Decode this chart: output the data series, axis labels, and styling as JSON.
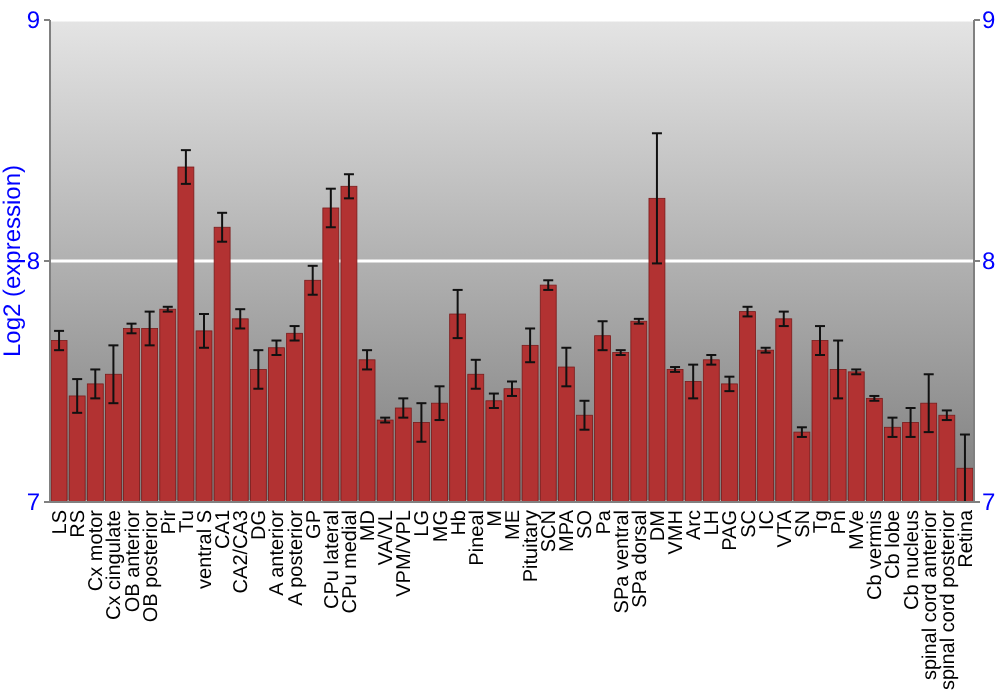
{
  "chart_data": {
    "type": "bar",
    "ylabel": "Log2 (expression)",
    "categories": [
      "LS",
      "RS",
      "Cx motor",
      "Cx cingulate",
      "OB anterior",
      "OB posterior",
      "Pir",
      "Tu",
      "ventral S",
      "CA1",
      "CA2/CA3",
      "DG",
      "A anterior",
      "A posterior",
      "GP",
      "CPu lateral",
      "CPu medial",
      "MD",
      "VA/VL",
      "VPM/VPL",
      "LG",
      "MG",
      "Hb",
      "Pineal",
      "M",
      "ME",
      "Pituitary",
      "SCN",
      "MPA",
      "SO",
      "Pa",
      "SPa ventral",
      "SPa dorsal",
      "DM",
      "VMH",
      "Arc",
      "LH",
      "PAG",
      "SC",
      "IC",
      "VTA",
      "SN",
      "Tg",
      "Pn",
      "MVe",
      "Cb vermis",
      "Cb lobe",
      "Cb nucleus",
      "spinal cord anterior",
      "spinal cord posterior",
      "Retina"
    ],
    "values": [
      7.67,
      7.44,
      7.49,
      7.53,
      7.72,
      7.72,
      7.8,
      8.39,
      7.71,
      8.14,
      7.76,
      7.55,
      7.64,
      7.7,
      7.92,
      8.22,
      8.31,
      7.59,
      7.34,
      7.39,
      7.33,
      7.41,
      7.78,
      7.53,
      7.42,
      7.47,
      7.65,
      7.9,
      7.56,
      7.36,
      7.69,
      7.62,
      7.75,
      8.26,
      7.55,
      7.5,
      7.59,
      7.49,
      7.79,
      7.63,
      7.76,
      7.29,
      7.67,
      7.55,
      7.54,
      7.43,
      7.31,
      7.33,
      7.41,
      7.36,
      7.14
    ],
    "errors": [
      0.04,
      0.07,
      0.06,
      0.12,
      0.02,
      0.07,
      0.01,
      0.07,
      0.07,
      0.06,
      0.04,
      0.08,
      0.03,
      0.03,
      0.06,
      0.08,
      0.05,
      0.04,
      0.01,
      0.04,
      0.08,
      0.07,
      0.1,
      0.06,
      0.03,
      0.03,
      0.07,
      0.02,
      0.08,
      0.06,
      0.06,
      0.01,
      0.01,
      0.27,
      0.01,
      0.07,
      0.02,
      0.03,
      0.02,
      0.01,
      0.03,
      0.02,
      0.06,
      0.12,
      0.01,
      0.01,
      0.04,
      0.06,
      0.12,
      0.02,
      0.14
    ],
    "color": "#b23232",
    "ylim": [
      7,
      9
    ],
    "yticks": [
      7,
      8,
      9
    ],
    "y2lim": [
      7,
      9
    ],
    "y2ticks": [
      7,
      8,
      9
    ],
    "grid": "y"
  }
}
